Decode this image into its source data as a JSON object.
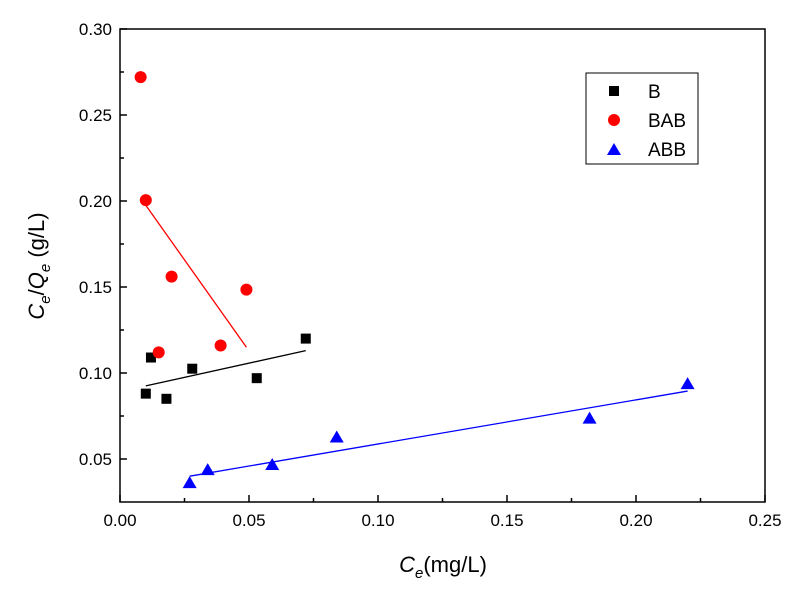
{
  "chart_data": {
    "type": "scatter",
    "title": "",
    "xlabel": {
      "base": "C",
      "sub": "e",
      "rest": "(mg/L)"
    },
    "ylabel": {
      "c": "C",
      "sub1": "e",
      "slash": "/",
      "q": "Q",
      "sub2": "e",
      "rest": " (g/L)"
    },
    "xlim": [
      0,
      0.25
    ],
    "ylim": [
      0.025,
      0.3
    ],
    "x_ticks": [
      0,
      0.05,
      0.1,
      0.15,
      0.2,
      0.25
    ],
    "x_tick_labels": [
      "0.00",
      "0.05",
      "0.10",
      "0.15",
      "0.20",
      "0.25"
    ],
    "y_ticks": [
      0.05,
      0.1,
      0.15,
      0.2,
      0.25,
      0.3
    ],
    "y_tick_labels": [
      "0.05",
      "0.10",
      "0.15",
      "0.20",
      "0.25",
      "0.30"
    ],
    "grid": false,
    "legend_position": "top-right",
    "series": [
      {
        "name": "B",
        "marker": "square",
        "color": "#000000",
        "x": [
          0.01,
          0.012,
          0.018,
          0.028,
          0.053,
          0.072
        ],
        "y": [
          0.088,
          0.109,
          0.085,
          0.1025,
          0.097,
          0.12
        ],
        "fit": {
          "x": [
            0.01,
            0.072
          ],
          "y": [
            0.0925,
            0.113
          ]
        }
      },
      {
        "name": "BAB",
        "marker": "circle",
        "color": "#ff0000",
        "x": [
          0.008,
          0.01,
          0.015,
          0.02,
          0.039,
          0.049
        ],
        "y": [
          0.272,
          0.2005,
          0.112,
          0.156,
          0.116,
          0.1485
        ],
        "fit": {
          "x": [
            0.01,
            0.049
          ],
          "y": [
            0.1975,
            0.115
          ]
        }
      },
      {
        "name": "ABB",
        "marker": "triangle",
        "color": "#0000ff",
        "x": [
          0.027,
          0.034,
          0.059,
          0.084,
          0.182,
          0.22
        ],
        "y": [
          0.036,
          0.0435,
          0.0465,
          0.0625,
          0.0735,
          0.0935
        ],
        "fit": {
          "x": [
            0.027,
            0.22
          ],
          "y": [
            0.04,
            0.0895
          ]
        }
      }
    ]
  }
}
